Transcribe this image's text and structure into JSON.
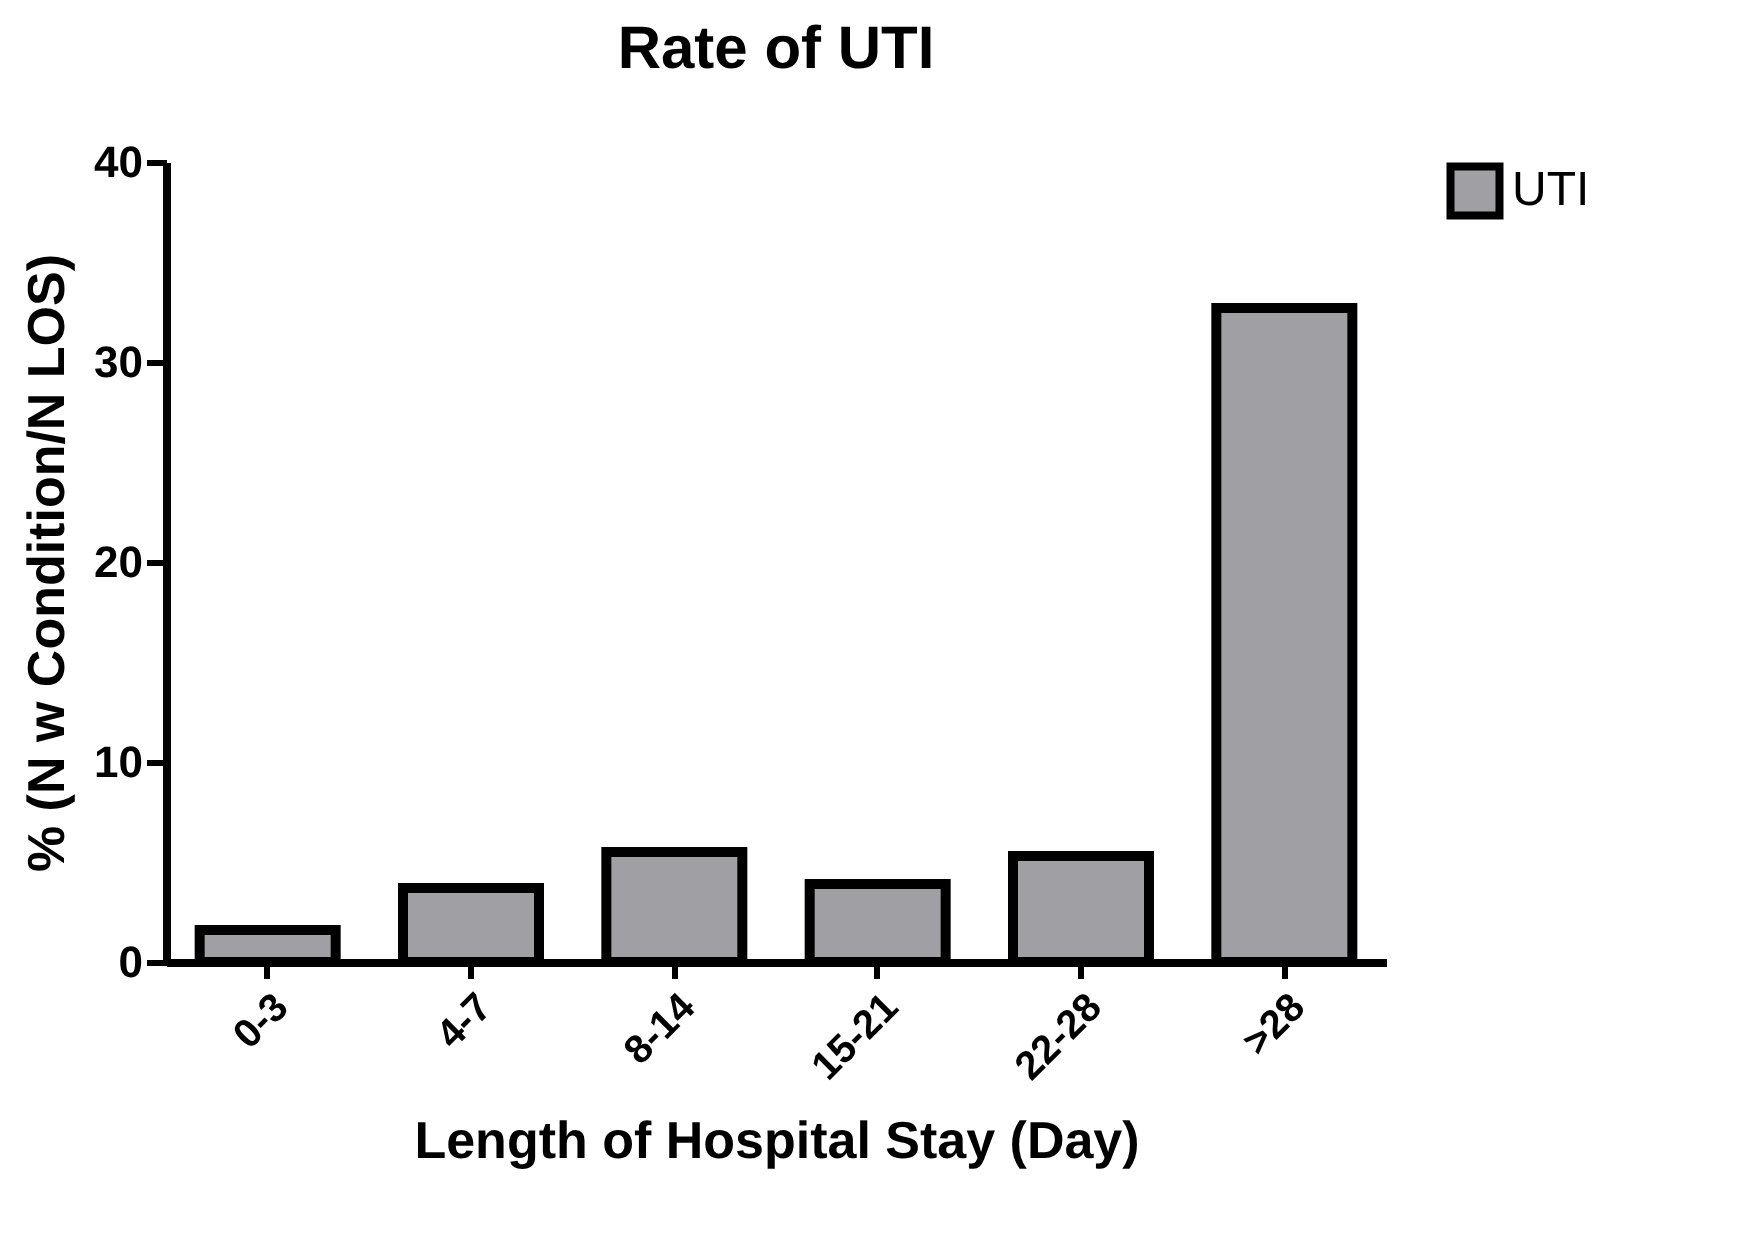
{
  "chart_data": {
    "type": "bar",
    "title": "Rate of UTI",
    "xlabel": "Length of Hospital Stay (Day)",
    "ylabel": "% (N w Condition/N LOS)",
    "categories": [
      "0-3",
      "4-7",
      "8-14",
      "15-21",
      "22-28",
      ">28"
    ],
    "series": [
      {
        "name": "UTI",
        "color": "#a0a0a4",
        "values": [
          1.6,
          3.7,
          5.5,
          3.9,
          5.3,
          32.7
        ]
      }
    ],
    "ylim": [
      0,
      40
    ],
    "yticks": [
      0,
      10,
      20,
      30,
      40
    ],
    "grid": false,
    "legend": "top right"
  }
}
